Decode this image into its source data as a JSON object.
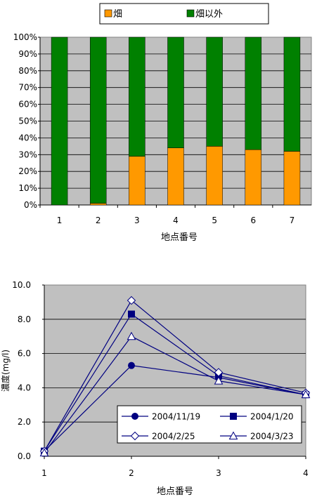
{
  "chart_data": [
    {
      "type": "bar",
      "stacked": true,
      "percent": true,
      "categories": [
        "1",
        "2",
        "3",
        "4",
        "5",
        "6",
        "7"
      ],
      "series": [
        {
          "name": "畑",
          "color": "#ff9900",
          "values": [
            0,
            1,
            29,
            34,
            35,
            33,
            32
          ]
        },
        {
          "name": "畑以外",
          "color": "#008000",
          "values": [
            100,
            99,
            71,
            66,
            65,
            67,
            68
          ]
        }
      ],
      "xlabel": "地点番号",
      "ylabel": "",
      "ylim": [
        0,
        100
      ],
      "yticks": [
        "0%",
        "10%",
        "20%",
        "30%",
        "40%",
        "50%",
        "60%",
        "70%",
        "80%",
        "90%",
        "100%"
      ],
      "plot_background": "#c0c0c0",
      "grid": true,
      "legend_position": "top"
    },
    {
      "type": "line",
      "categories": [
        "1",
        "2",
        "3",
        "4"
      ],
      "series": [
        {
          "name": "2004/11/19",
          "marker": "circle-filled",
          "values": [
            0.3,
            5.3,
            4.6,
            3.6
          ]
        },
        {
          "name": "2004/1/20",
          "marker": "square-filled",
          "values": [
            0.3,
            8.3,
            4.7,
            3.6
          ]
        },
        {
          "name": "2004/2/25",
          "marker": "diamond-open",
          "values": [
            0.3,
            9.1,
            4.9,
            3.7
          ]
        },
        {
          "name": "2004/3/23",
          "marker": "triangle-open",
          "values": [
            0.2,
            7.0,
            4.4,
            3.6
          ]
        }
      ],
      "line_color": "#000080",
      "xlabel": "地点番号",
      "ylabel": "濃度(mg/l)",
      "ylim": [
        0,
        10
      ],
      "yticks": [
        "0.0",
        "2.0",
        "4.0",
        "6.0",
        "8.0",
        "10.0"
      ],
      "plot_background": "#c0c0c0",
      "grid": true,
      "legend_position": "bottom-right inside"
    }
  ]
}
